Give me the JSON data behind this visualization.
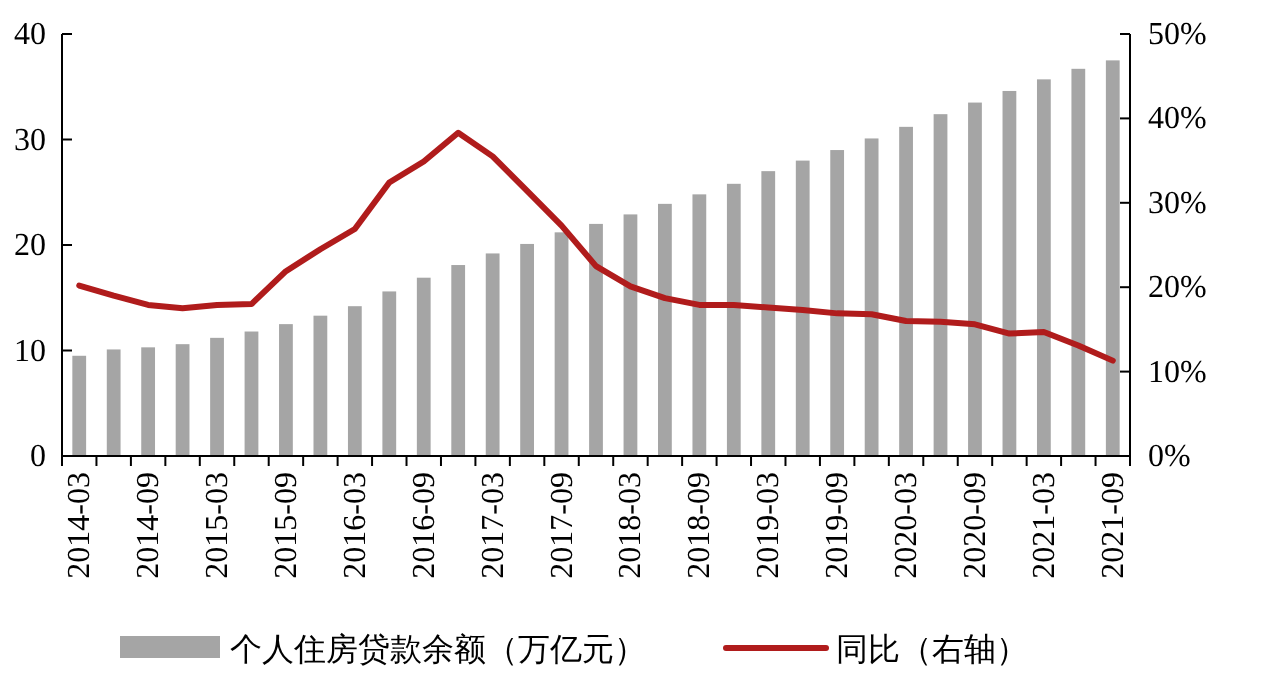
{
  "chart_data": {
    "type": "bar",
    "categories": [
      "2014-03",
      null,
      "2014-09",
      null,
      "2015-03",
      null,
      "2015-09",
      null,
      "2016-03",
      null,
      "2016-09",
      null,
      "2017-03",
      null,
      "2017-09",
      null,
      "2018-03",
      null,
      "2018-09",
      null,
      "2019-03",
      null,
      "2019-09",
      null,
      "2020-03",
      null,
      "2020-09",
      null,
      "2021-03",
      null,
      "2021-09"
    ],
    "series": [
      {
        "name": "个人住房贷款余额（万亿元）",
        "color": "#a5a5a5",
        "values": [
          9.5,
          10.1,
          10.3,
          10.6,
          11.2,
          11.8,
          12.5,
          13.3,
          14.2,
          15.6,
          16.9,
          18.1,
          19.2,
          20.1,
          21.2,
          22.0,
          22.9,
          23.9,
          24.8,
          25.8,
          27.0,
          28.0,
          29.0,
          30.1,
          31.2,
          32.4,
          33.5,
          34.6,
          35.7,
          36.7,
          37.5
        ]
      },
      {
        "name": "同比（右轴）",
        "type": "line",
        "axis": "y2",
        "color": "#b01c1c",
        "values": [
          20.2,
          19.0,
          17.9,
          17.5,
          17.9,
          18.0,
          21.9,
          24.5,
          26.9,
          32.4,
          34.9,
          38.3,
          35.5,
          31.4,
          27.3,
          22.5,
          20.1,
          18.7,
          17.9,
          17.9,
          17.6,
          17.3,
          16.9,
          16.8,
          16.0,
          15.9,
          15.6,
          14.5,
          14.7,
          13.1,
          11.3
        ]
      }
    ],
    "ylim": [
      0,
      40
    ],
    "yticks": [
      0,
      10,
      20,
      30,
      40
    ],
    "y2lim": [
      0,
      50
    ],
    "y2ticks": [
      {
        "value": 0,
        "label": "0%"
      },
      {
        "value": 10,
        "label": "10%"
      },
      {
        "value": 20,
        "label": "20%"
      },
      {
        "value": 30,
        "label": "30%"
      },
      {
        "value": 40,
        "label": "40%"
      },
      {
        "value": 50,
        "label": "50%"
      }
    ],
    "grid": false,
    "legend": "bottom",
    "line_style": "solid"
  }
}
